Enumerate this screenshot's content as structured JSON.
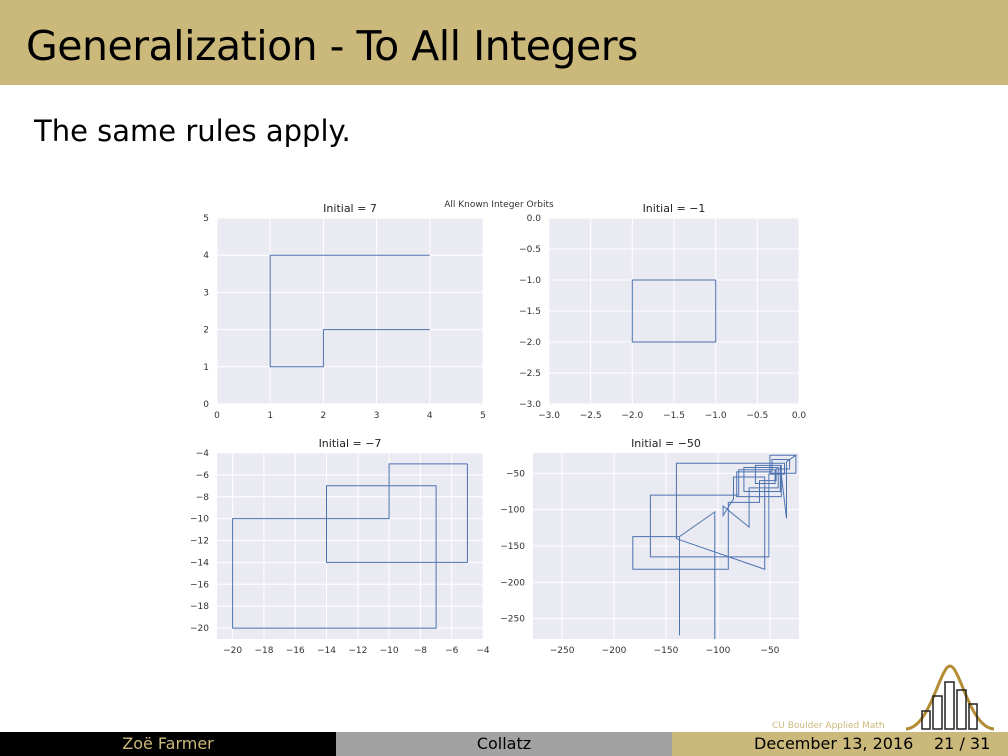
{
  "slide": {
    "title": "Generalization - To All Integers",
    "body_text": "The same rules apply."
  },
  "footer": {
    "author": "Zoë Farmer",
    "short_title": "Collatz",
    "date": "December 13, 2016",
    "page": "21 / 31",
    "brand": "CU Boulder Applied Math"
  },
  "chart_data": [
    {
      "type": "line",
      "suptitle": "All Known Integer Orbits",
      "title": "Initial = 7",
      "xlim": [
        0,
        5
      ],
      "ylim": [
        0,
        5
      ],
      "xticks": [
        "0",
        "1",
        "2",
        "3",
        "4",
        "5"
      ],
      "yticks": [
        "0",
        "1",
        "2",
        "3",
        "4",
        "5"
      ],
      "path": [
        [
          4,
          4
        ],
        [
          1,
          4
        ],
        [
          1,
          1
        ],
        [
          2,
          1
        ],
        [
          2,
          2
        ],
        [
          4,
          2
        ]
      ]
    },
    {
      "type": "line",
      "title": "Initial = −1",
      "xlim": [
        -3.0,
        0.0
      ],
      "ylim": [
        -3.0,
        0.0
      ],
      "xticks": [
        "−3.0",
        "−2.5",
        "−2.0",
        "−1.5",
        "−1.0",
        "−0.5",
        "0.0"
      ],
      "yticks": [
        "0.0",
        "−0.5",
        "−1.0",
        "−1.5",
        "−2.0",
        "−2.5",
        "−3.0"
      ],
      "path": [
        [
          -1,
          -1
        ],
        [
          -2,
          -1
        ],
        [
          -2,
          -2
        ],
        [
          -1,
          -2
        ],
        [
          -1,
          -1
        ]
      ]
    },
    {
      "type": "line",
      "title": "Initial = −7",
      "xlim": [
        -21,
        -4
      ],
      "ylim": [
        -21,
        -4
      ],
      "xticks": [
        "−20",
        "−18",
        "−16",
        "−14",
        "−12",
        "−10",
        "−8",
        "−6",
        "−4"
      ],
      "yticks": [
        "−4",
        "−6",
        "−8",
        "−10",
        "−12",
        "−14",
        "−16",
        "−18",
        "−20"
      ],
      "path": [
        [
          -5,
          -5
        ],
        [
          -5,
          -14
        ],
        [
          -14,
          -14
        ],
        [
          -14,
          -7
        ],
        [
          -7,
          -7
        ],
        [
          -7,
          -20
        ],
        [
          -20,
          -20
        ],
        [
          -20,
          -10
        ],
        [
          -10,
          -10
        ],
        [
          -10,
          -5
        ],
        [
          -5,
          -5
        ]
      ]
    },
    {
      "type": "line",
      "title": "Initial = −50",
      "xlim": [
        -278,
        -22
      ],
      "ylim": [
        -278,
        -22
      ],
      "xticks": [
        "−250",
        "−200",
        "−150",
        "−100",
        "−50"
      ],
      "yticks": [
        "−50",
        "−100",
        "−150",
        "−200",
        "−250"
      ],
      "path": [
        [
          -25,
          -25
        ],
        [
          -25,
          -50
        ],
        [
          -50,
          -50
        ],
        [
          -50,
          -25
        ],
        [
          -25,
          -25
        ],
        [
          -34,
          -34
        ],
        [
          -34,
          -112
        ],
        [
          -40,
          -40
        ],
        [
          -40,
          -75
        ],
        [
          -75,
          -75
        ],
        [
          -75,
          -42
        ],
        [
          -42,
          -42
        ],
        [
          -42,
          -70
        ],
        [
          -70,
          -70
        ],
        [
          -70,
          -124
        ],
        [
          -95,
          -95
        ],
        [
          -95,
          -108
        ],
        [
          -85,
          -85
        ],
        [
          -85,
          -55
        ],
        [
          -55,
          -55
        ],
        [
          -55,
          -182
        ],
        [
          -140,
          -140
        ],
        [
          -140,
          -36
        ],
        [
          -36,
          -36
        ],
        [
          -36,
          -51
        ],
        [
          -51,
          -51
        ],
        [
          -51,
          -165
        ],
        [
          -165,
          -165
        ],
        [
          -165,
          -80
        ],
        [
          -80,
          -80
        ],
        [
          -80,
          -45
        ],
        [
          -45,
          -45
        ],
        [
          -45,
          -64
        ],
        [
          -64,
          -64
        ],
        [
          -64,
          -39
        ],
        [
          -39,
          -39
        ],
        [
          -39,
          -82
        ],
        [
          -82,
          -82
        ],
        [
          -82,
          -48
        ],
        [
          -48,
          -48
        ],
        [
          -48,
          -31
        ],
        [
          -31,
          -31
        ],
        [
          -31,
          -44
        ],
        [
          -44,
          -44
        ],
        [
          -44,
          -60
        ],
        [
          -60,
          -60
        ],
        [
          -60,
          -90
        ],
        [
          -90,
          -90
        ],
        [
          -90,
          -182
        ],
        [
          -182,
          -182
        ],
        [
          -182,
          -137
        ],
        [
          -137,
          -137
        ],
        [
          -137,
          -273
        ],
        [
          -137,
          -137
        ],
        [
          -103,
          -103
        ],
        [
          -103,
          -310
        ]
      ]
    }
  ]
}
